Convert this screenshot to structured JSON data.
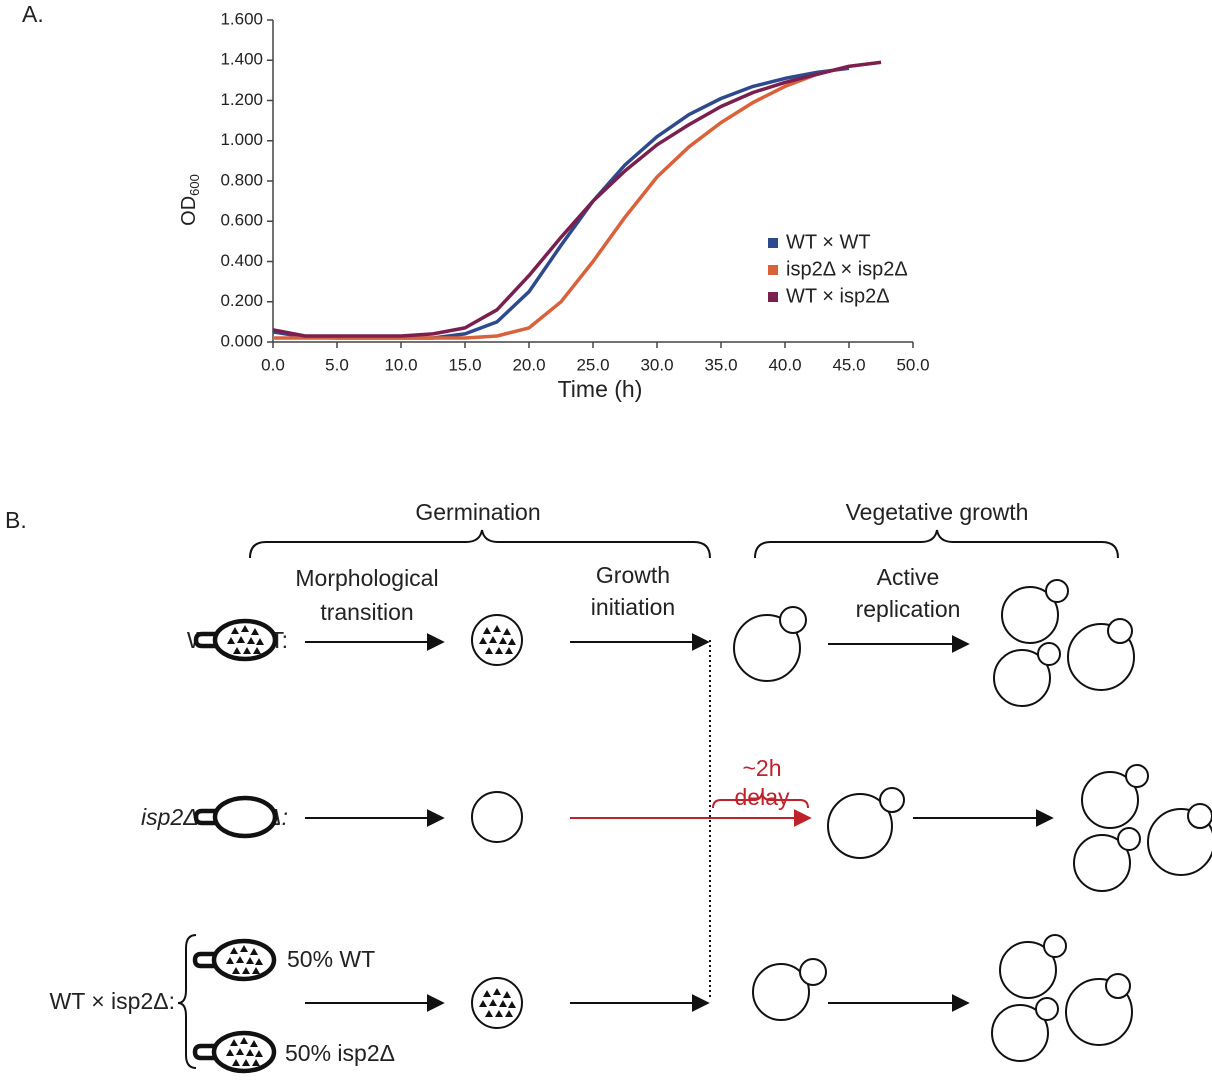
{
  "chart_data": {
    "type": "line",
    "panel_label": "A.",
    "x_label": "Time (h)",
    "y_label": "OD",
    "y_label_sub": "600",
    "x": [
      0,
      2.5,
      5,
      7.5,
      10,
      12.5,
      15,
      17.5,
      20,
      22.5,
      25,
      27.5,
      30,
      32.5,
      35,
      37.5,
      40,
      42.5,
      45,
      47.5
    ],
    "series": [
      {
        "name": "WT × WT",
        "color": "#2e4a8f",
        "values": [
          0.05,
          0.025,
          0.02,
          0.02,
          0.02,
          0.02,
          0.04,
          0.1,
          0.25,
          0.48,
          0.7,
          0.88,
          1.02,
          1.13,
          1.21,
          1.27,
          1.31,
          1.34,
          1.36,
          null
        ]
      },
      {
        "name": "isp2Δ × isp2Δ",
        "color": "#d9623b",
        "values": [
          0.02,
          0.02,
          0.02,
          0.02,
          0.02,
          0.02,
          0.02,
          0.03,
          0.07,
          0.2,
          0.4,
          0.62,
          0.82,
          0.97,
          1.09,
          1.19,
          1.27,
          1.33,
          1.37,
          1.39
        ]
      },
      {
        "name": "WT × isp2Δ",
        "color": "#7a1f4e",
        "values": [
          0.06,
          0.03,
          0.03,
          0.03,
          0.03,
          0.04,
          0.07,
          0.16,
          0.33,
          0.52,
          0.7,
          0.85,
          0.98,
          1.08,
          1.17,
          1.24,
          1.29,
          1.33,
          1.37,
          1.39
        ]
      }
    ],
    "xlim": [
      0,
      50
    ],
    "xticks": [
      {
        "value": 0,
        "label": "0.0"
      },
      {
        "value": 5,
        "label": "5.0"
      },
      {
        "value": 10,
        "label": "10.0"
      },
      {
        "value": 15,
        "label": "15.0"
      },
      {
        "value": 20,
        "label": "20.0"
      },
      {
        "value": 25,
        "label": "25.0"
      },
      {
        "value": 30,
        "label": "30.0"
      },
      {
        "value": 35,
        "label": "35.0"
      },
      {
        "value": 40,
        "label": "40.0"
      },
      {
        "value": 45,
        "label": "45.0"
      },
      {
        "value": 50,
        "label": "50.0"
      }
    ],
    "ylim": [
      0,
      1.6
    ],
    "yticks": [
      {
        "value": 0,
        "label": "0.000"
      },
      {
        "value": 0.2,
        "label": "0.200"
      },
      {
        "value": 0.4,
        "label": "0.400"
      },
      {
        "value": 0.6,
        "label": "0.600"
      },
      {
        "value": 0.8,
        "label": "0.800"
      },
      {
        "value": 1.0,
        "label": "1.000"
      },
      {
        "value": 1.2,
        "label": "1.200"
      },
      {
        "value": 1.4,
        "label": "1.400"
      },
      {
        "value": 1.6,
        "label": "1.600"
      }
    ],
    "legend": "right"
  },
  "diagram": {
    "panel_label": "B.",
    "phases": [
      "Germination",
      "Vegetative growth"
    ],
    "steps": [
      [
        "Morphological",
        "transition"
      ],
      [
        "Growth",
        "initiation"
      ],
      [
        "Active",
        "replication"
      ]
    ],
    "rows": [
      "WT × WT:",
      "isp2Δ × isp2Δ:",
      "WT × isp2Δ:"
    ],
    "delay": [
      "~2h",
      "delay"
    ],
    "mixture": [
      "50% WT",
      "50% isp2Δ"
    ]
  }
}
